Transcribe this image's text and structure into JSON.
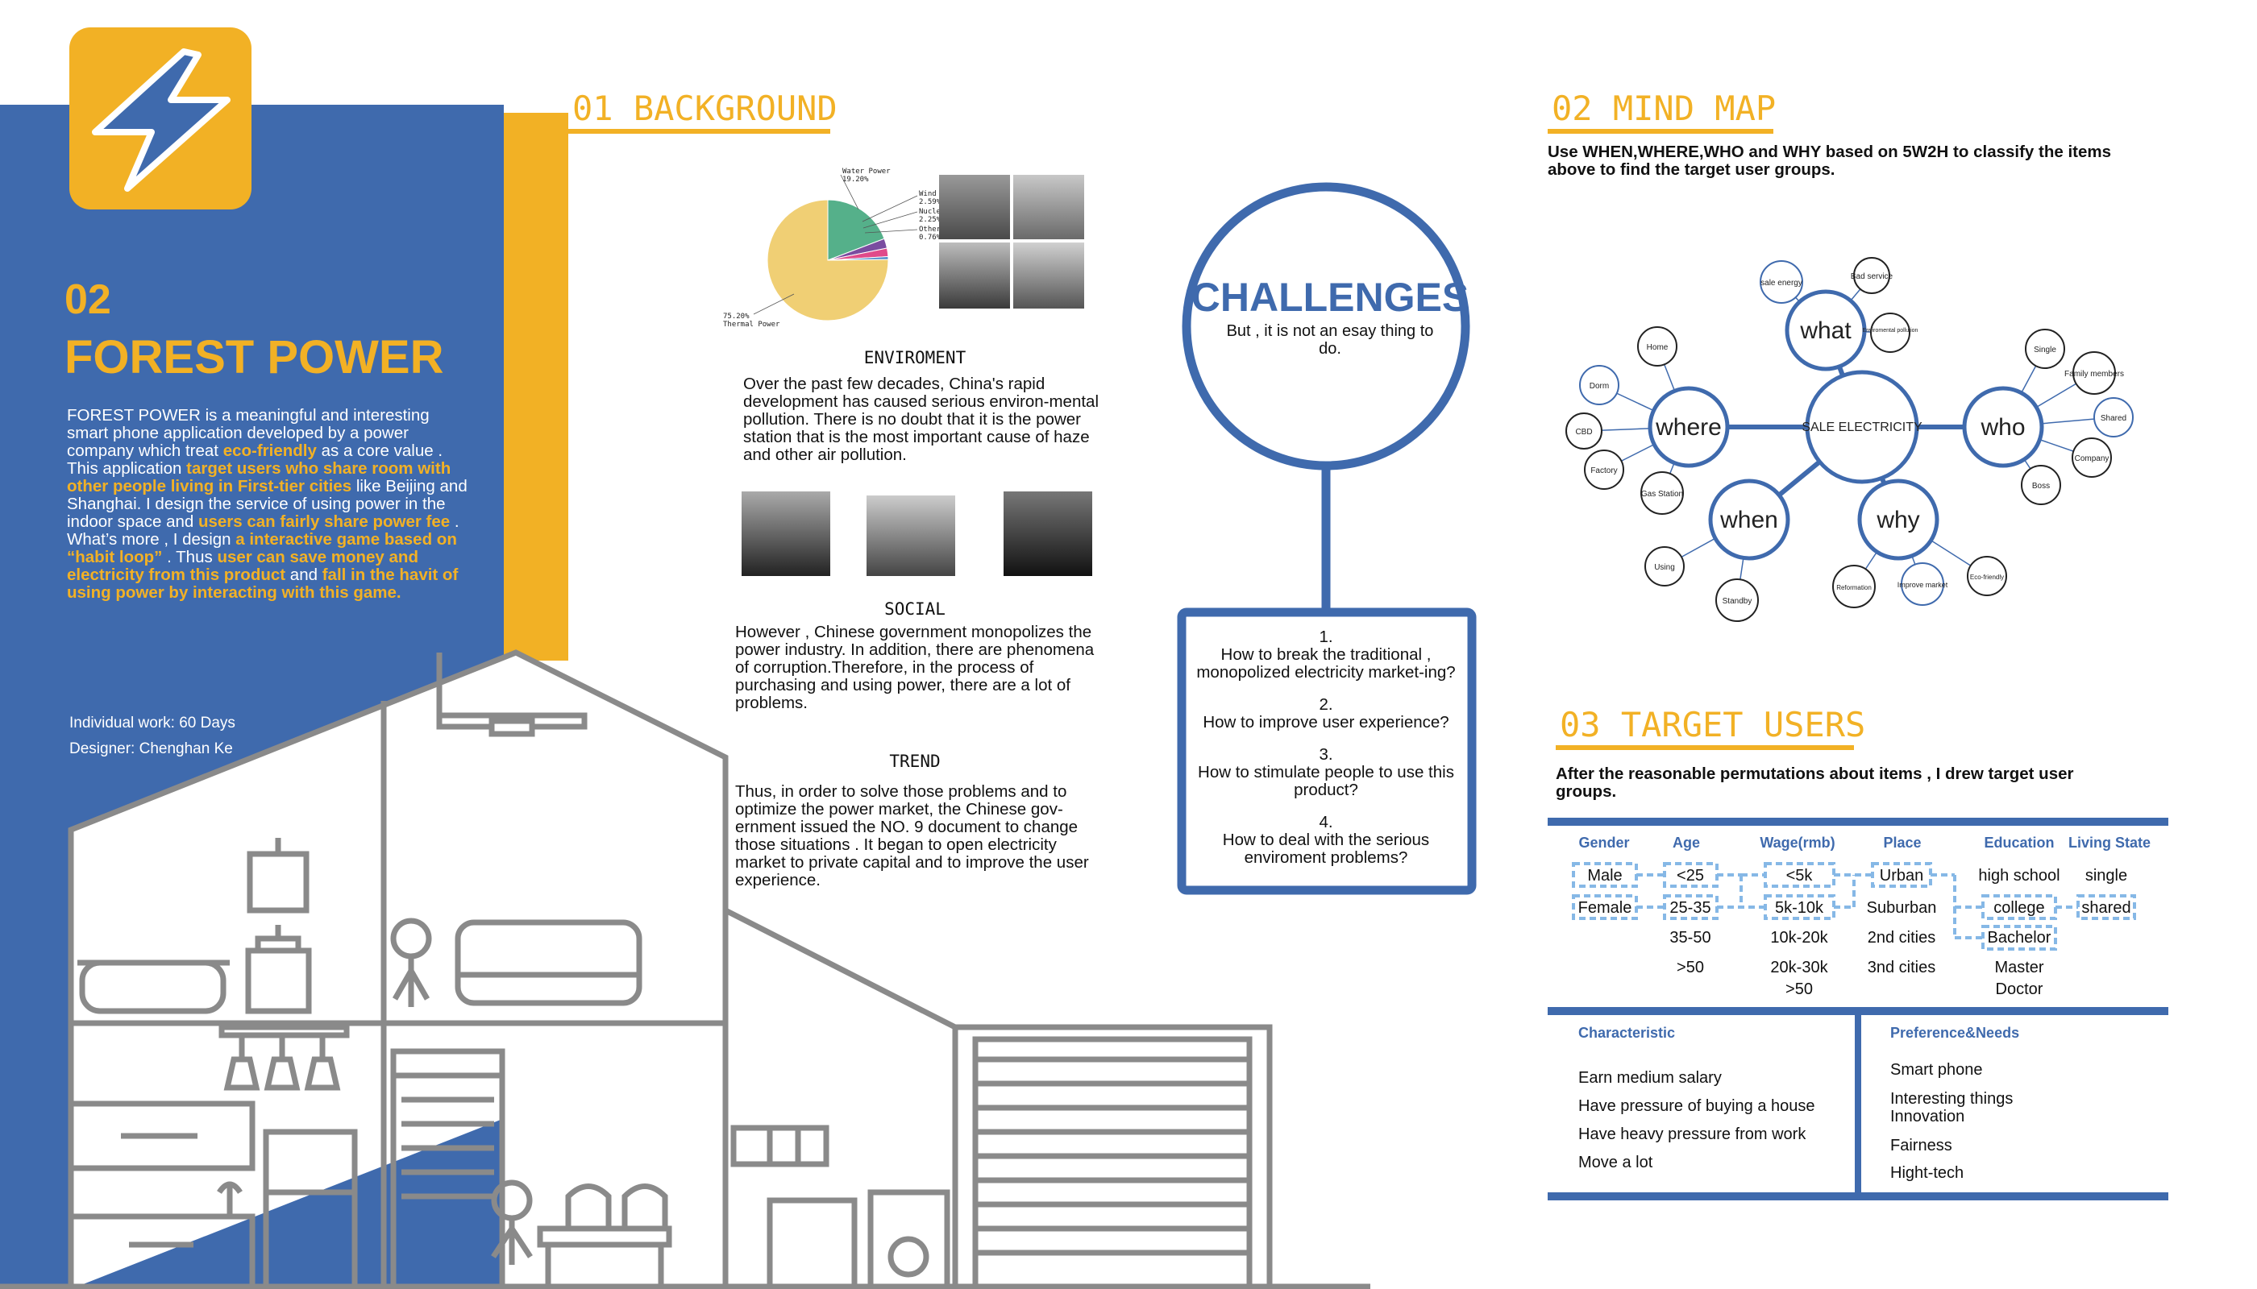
{
  "project": {
    "number": "02",
    "title": "FOREST POWER",
    "intro": [
      {
        "t": "FOREST POWER is a meaningful and interesting smart phone application developed by a power company which treat ",
        "hl": false
      },
      {
        "t": "eco-friendly",
        "hl": true
      },
      {
        "t": " as a core value . This application ",
        "hl": false
      },
      {
        "t": "target users who share room with other people living in First-tier cities",
        "hl": true
      },
      {
        "t": " like Beijing and Shanghai. I design the service of using power in the indoor space and ",
        "hl": false
      },
      {
        "t": "users can fairly share power fee",
        "hl": true
      },
      {
        "t": " . What’s more , I design ",
        "hl": false
      },
      {
        "t": "a interactive game based on “habit loop”",
        "hl": true
      },
      {
        "t": " . Thus ",
        "hl": false
      },
      {
        "t": "user can save money and electricity from this product",
        "hl": true
      },
      {
        "t": " and ",
        "hl": false
      },
      {
        "t": "fall in the havit of  using power by interacting with this game.",
        "hl": true
      }
    ],
    "credit_work": "Individual work:   60 Days",
    "credit_designer": "Designer: Chenghan Ke",
    "logo_icon": "lightning-bolt-icon",
    "colors": {
      "blue": "#3f6aad",
      "yellow": "#f2b125",
      "gray": "#8a8a8a"
    }
  },
  "background": {
    "title": "01 BACKGROUND",
    "pie": {
      "labels": [
        "Water Power\n19.20%",
        "Wind Power\n2.59%",
        "Nuclear Power\n2.25%",
        "Other\n0.76%",
        "75.20%\nThermal Power"
      ]
    },
    "environment_head": "ENVIROMENT",
    "environment_text": "Over the past few decades, China's rapid development has caused serious environ-mental pollution. There is no doubt that it is the power station that is the most important cause of haze and other air pollution.",
    "social_head": "SOCIAL",
    "social_text": "However , Chinese government monopolizes the power industry. In addition, there are phenomena of corruption.Therefore, in the process of purchasing and using power, there are a lot of problems.",
    "trend_head": "TREND",
    "trend_text": "Thus, in order to solve those problems and to optimize the power market, the Chinese gov-ernment issued the NO. 9 document to change those situations . It began to open electricity market to private capital and to improve the user experience."
  },
  "chart_data": {
    "type": "pie",
    "categories": [
      "Thermal Power",
      "Water Power",
      "Wind Power",
      "Nuclear Power",
      "Other"
    ],
    "values": [
      75.2,
      19.2,
      2.59,
      2.25,
      0.76
    ],
    "colors": [
      "#f0cf74",
      "#55b08a",
      "#7a4ca0",
      "#e04a8a",
      "#4a86c8"
    ]
  },
  "challenges": {
    "title": "CHALLENGES",
    "subtitle": "But , it is not an esay thing to do.",
    "questions": [
      {
        "n": "1.",
        "q": "How to break the traditional , monopolized electricity market-ing?"
      },
      {
        "n": "2.",
        "q": "How to improve user experience?"
      },
      {
        "n": "3.",
        "q": "How to stimulate people to use this product?"
      },
      {
        "n": "4.",
        "q": "How to deal with the serious enviroment problems?"
      }
    ]
  },
  "mindmap": {
    "title": "02 MIND MAP",
    "desc": "Use WHEN,WHERE,WHO and WHY based on 5W2H to classify the items above to find the target user groups.",
    "center": "SALE ELECTRICITY",
    "what": "what",
    "where": "where",
    "who": "who",
    "when": "when",
    "why": "why",
    "what_items": [
      "sale energy",
      "Bad service",
      "Enviromental pollution"
    ],
    "where_items": [
      "Home",
      "Dorm",
      "CBD",
      "Factory",
      "Gas Station"
    ],
    "who_items": [
      "Single",
      "Family members",
      "Shared",
      "Company",
      "Boss"
    ],
    "when_items": [
      "Using",
      "Standby"
    ],
    "why_items": [
      "Reformation",
      "Improve market",
      "Eco-friendly"
    ]
  },
  "target": {
    "title": "03 TARGET USERS",
    "desc": "After the reasonable permutations about items , I drew target user groups.",
    "headers": [
      "Gender",
      "Age",
      "Wage(rmb)",
      "Place",
      "Education",
      "Living State"
    ],
    "gender": [
      "Male",
      "Female"
    ],
    "age": [
      "<25",
      "25-35",
      "35-50",
      ">50"
    ],
    "wage": [
      "<5k",
      "5k-10k",
      "10k-20k",
      "20k-30k",
      ">50"
    ],
    "place": [
      "Urban",
      "Suburban",
      "2nd cities",
      "3nd cities"
    ],
    "education": [
      "high school",
      "college",
      "Bachelor",
      "Master",
      "Doctor"
    ],
    "living": [
      "single",
      "shared"
    ],
    "characteristic_label": "Characteristic",
    "characteristic": [
      "Earn medium salary",
      "Have pressure of buying a house",
      "Have heavy pressure from work",
      "Move a lot"
    ],
    "preference_label": "Preference&Needs",
    "preference": [
      "Smart phone",
      "Interesting things\nInnovation",
      "Fairness",
      "Hight-tech"
    ]
  }
}
